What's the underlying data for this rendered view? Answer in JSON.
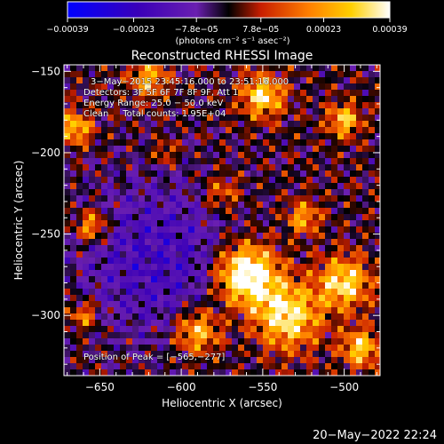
{
  "chart_data": {
    "type": "heatmap",
    "title": "Reconstructed RHESSI Image",
    "xlabel": "Heliocentric X (arcsec)",
    "ylabel": "Heliocentric Y (arcsec)",
    "xlim": [
      -672,
      -478
    ],
    "ylim": [
      -337,
      -146
    ],
    "x_ticks": [
      -650,
      -600,
      -550,
      -500
    ],
    "y_ticks": [
      -300,
      -250,
      -200,
      -150
    ],
    "x_tick_labels": [
      "−650",
      "−600",
      "−550",
      "−500"
    ],
    "y_tick_labels": [
      "−300",
      "−250",
      "−200",
      "−150"
    ],
    "colorbar": {
      "range": [
        -0.00039,
        0.00039
      ],
      "ticks": [
        -0.00039,
        -0.00023,
        -7.8e-05,
        7.8e-05,
        0.00023,
        0.00039
      ],
      "tick_labels": [
        "−0.00039",
        "−0.00023",
        "−7.8e−05",
        "7.8e−05",
        "0.00023",
        "0.00039"
      ],
      "unit_label": "(photons cm⁻² s⁻¹ asec⁻²)"
    },
    "peak": [
      -565,
      -277
    ],
    "colors": [
      "#0000ff",
      "#3a00b8",
      "#6a1fb0",
      "#000000",
      "#c81e00",
      "#ff8000",
      "#ffd000",
      "#ffffff"
    ]
  },
  "annotations": {
    "time": "3−May−2015 23:45:16.000 to 23:51:16.000",
    "detectors": "Detectors: 3F 5F 6F 7F 8F 9F, Att 1",
    "energy": "Energy Range: 25.0 − 50.0 keV",
    "clean": "Clean     Total counts: 1.95E+04",
    "peak_label": "Position of Peak = [−565,−277]"
  },
  "footer_date": "20−May−2022 22:24"
}
